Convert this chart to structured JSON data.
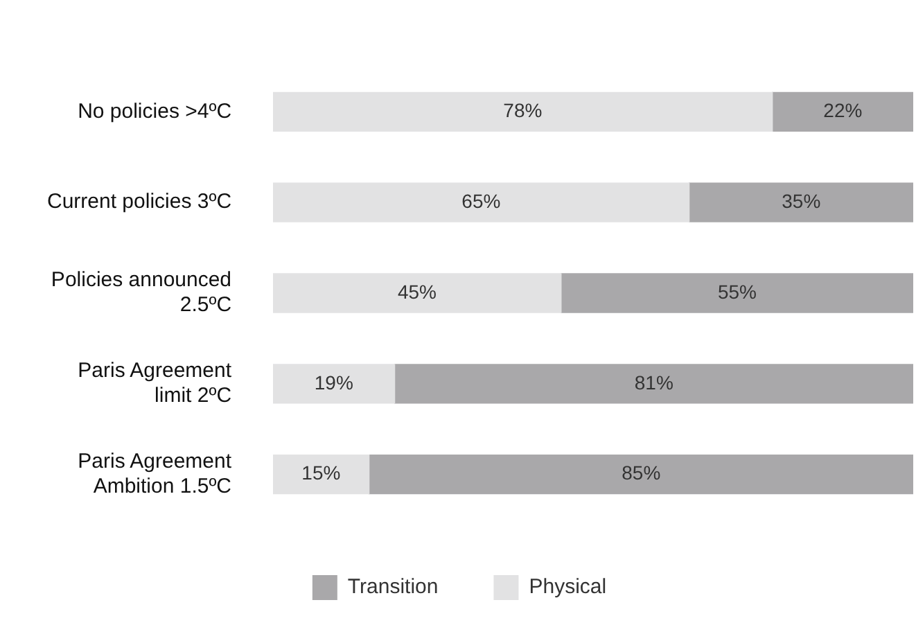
{
  "chart_data": {
    "type": "bar",
    "orientation": "horizontal",
    "stacked": true,
    "categories": [
      "No policies >4ºC",
      "Current policies 3ºC",
      "Policies announced\n2.5ºC",
      "Paris Agreement\nlimit 2ºC",
      "Paris Agreement\nAmbition 1.5ºC"
    ],
    "series": [
      {
        "name": "Physical",
        "color": "#e2e2e3",
        "values": [
          78,
          65,
          45,
          19,
          15
        ],
        "value_labels": [
          "78%",
          "65%",
          "45%",
          "19%",
          "15%"
        ]
      },
      {
        "name": "Transition",
        "color": "#a9a8aa",
        "values": [
          22,
          35,
          55,
          81,
          85
        ],
        "value_labels": [
          "22%",
          "35%",
          "55%",
          "81%",
          "85%"
        ]
      }
    ],
    "legend": "bottom",
    "grid": false,
    "tick_labels": "y"
  }
}
